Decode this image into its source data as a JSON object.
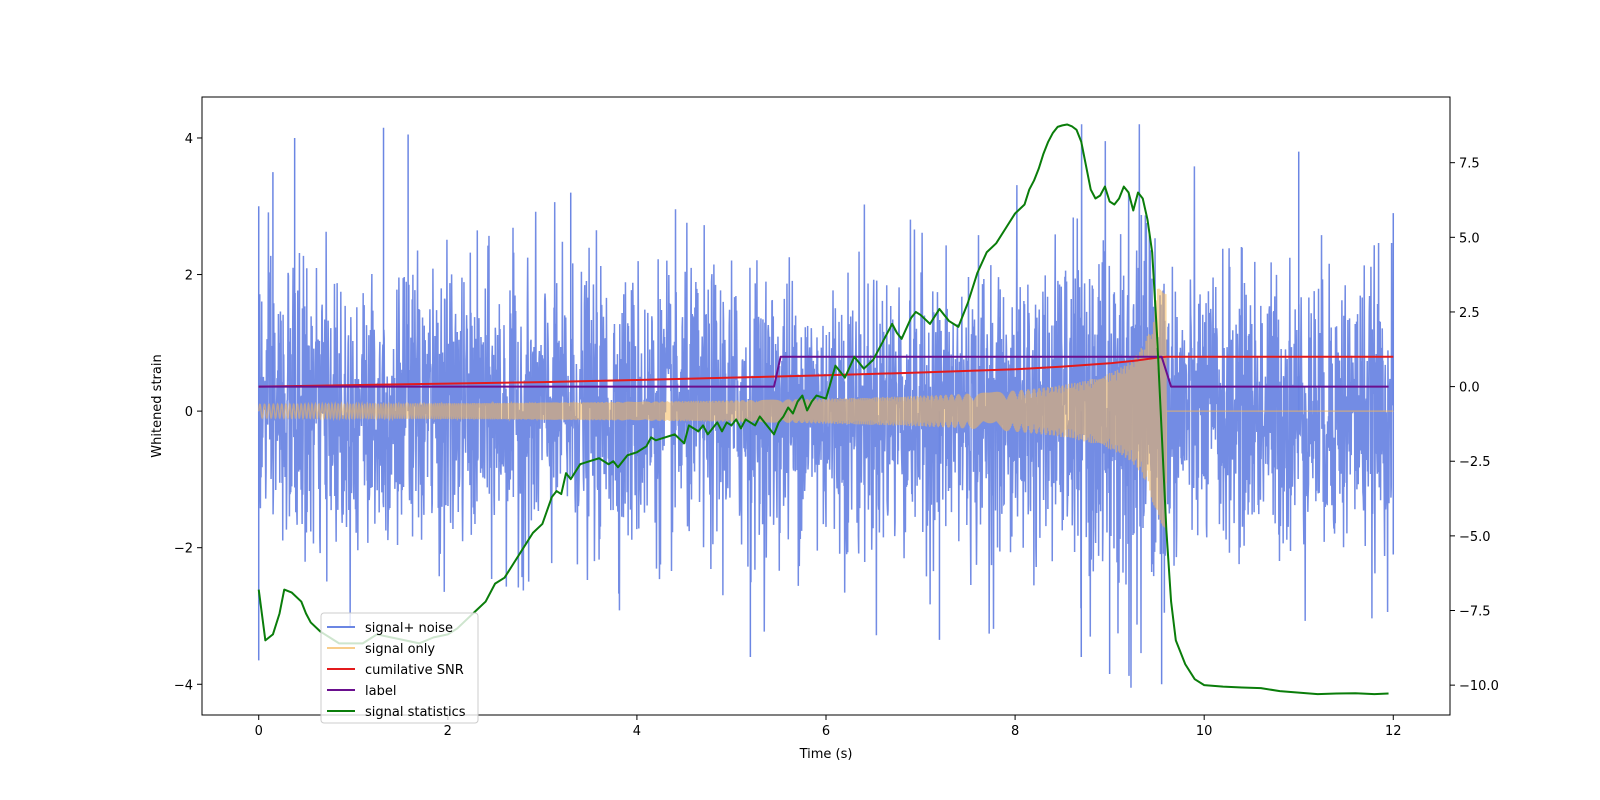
{
  "chart_data": {
    "type": "line",
    "title": "",
    "xlabel": "Time (s)",
    "ylabel": "Whitened strain",
    "y2label": "",
    "xlim": [
      -0.6,
      12.6
    ],
    "ylim": [
      -4.45,
      4.6
    ],
    "y2lim": [
      -11.0,
      9.7
    ],
    "xticks": [
      0,
      2,
      4,
      6,
      8,
      10,
      12
    ],
    "xtick_labels": [
      "0",
      "2",
      "4",
      "6",
      "8",
      "10",
      "12"
    ],
    "yticks": [
      -4,
      -2,
      0,
      2,
      4
    ],
    "ytick_labels": [
      "−4",
      "−2",
      "0",
      "2",
      "4"
    ],
    "y2ticks": [
      -10.0,
      -7.5,
      -5.0,
      -2.5,
      0.0,
      2.5,
      5.0,
      7.5
    ],
    "y2tick_labels": [
      "−10.0",
      "−7.5",
      "−5.0",
      "−2.5",
      "0.0",
      "2.5",
      "5.0",
      "7.5"
    ],
    "grid": false,
    "legend_position": "lower-left",
    "series": [
      {
        "name": "signal+ noise",
        "axis": "left",
        "color": "#6b86e3",
        "style": "noise",
        "t_start": 0,
        "t_end": 12,
        "sigma": 1.0,
        "envelope_peak": 1.8,
        "notable_spikes": [
          [
            0.0,
            3.0
          ],
          [
            0.0,
            -3.65
          ],
          [
            0.15,
            3.5
          ],
          [
            0.38,
            4.0
          ],
          [
            1.32,
            4.15
          ],
          [
            1.58,
            4.05
          ],
          [
            3.3,
            3.2
          ],
          [
            5.2,
            -3.6
          ],
          [
            7.2,
            -3.35
          ],
          [
            8.7,
            -3.6
          ],
          [
            9.0,
            -3.85
          ],
          [
            9.55,
            -4.0
          ],
          [
            11.0,
            3.8
          ],
          [
            12.0,
            2.9
          ],
          [
            12.0,
            -2.1
          ]
        ]
      },
      {
        "name": "signal only",
        "axis": "left",
        "color": "#f5b85a",
        "style": "chirp",
        "t_start": 0,
        "t_merge": 9.6,
        "t_end": 12,
        "amp_start": 0.1,
        "amp_peak": 1.8
      },
      {
        "name": "cumilative SNR",
        "axis": "right",
        "color": "#e31a1c",
        "x": [
          0,
          1,
          2,
          3,
          4,
          5,
          6,
          7,
          8,
          8.5,
          9.0,
          9.3,
          9.5,
          9.6,
          10,
          11,
          12
        ],
        "y": [
          0.0,
          0.05,
          0.1,
          0.15,
          0.22,
          0.3,
          0.38,
          0.47,
          0.58,
          0.67,
          0.78,
          0.88,
          0.97,
          1.0,
          1.0,
          1.0,
          1.0
        ]
      },
      {
        "name": "label",
        "axis": "right",
        "color": "#6a0f8e",
        "x": [
          0,
          5.45,
          5.52,
          9.55,
          9.65,
          11.95
        ],
        "y": [
          0.0,
          0.0,
          1.0,
          1.0,
          0.0,
          0.0
        ]
      },
      {
        "name": "signal statistics",
        "axis": "right",
        "color": "#0a7d0a",
        "x": [
          0.0,
          0.07,
          0.15,
          0.22,
          0.27,
          0.35,
          0.45,
          0.5,
          0.55,
          0.65,
          0.75,
          0.85,
          0.95,
          1.1,
          1.25,
          1.4,
          1.55,
          1.7,
          1.85,
          2.0,
          2.1,
          2.2,
          2.3,
          2.4,
          2.5,
          2.6,
          2.7,
          2.8,
          2.9,
          3.0,
          3.1,
          3.15,
          3.2,
          3.25,
          3.3,
          3.4,
          3.5,
          3.6,
          3.7,
          3.75,
          3.8,
          3.9,
          4.0,
          4.1,
          4.15,
          4.2,
          4.3,
          4.4,
          4.5,
          4.55,
          4.6,
          4.65,
          4.7,
          4.75,
          4.8,
          4.85,
          4.9,
          4.95,
          5.0,
          5.05,
          5.1,
          5.15,
          5.2,
          5.25,
          5.3,
          5.4,
          5.45,
          5.5,
          5.55,
          5.6,
          5.65,
          5.7,
          5.75,
          5.8,
          5.85,
          5.9,
          6.0,
          6.1,
          6.15,
          6.2,
          6.3,
          6.35,
          6.4,
          6.5,
          6.6,
          6.7,
          6.75,
          6.8,
          6.9,
          6.95,
          7.0,
          7.1,
          7.2,
          7.3,
          7.4,
          7.5,
          7.6,
          7.7,
          7.8,
          7.9,
          8.0,
          8.1,
          8.15,
          8.2,
          8.25,
          8.3,
          8.35,
          8.4,
          8.45,
          8.5,
          8.55,
          8.6,
          8.65,
          8.7,
          8.75,
          8.8,
          8.85,
          8.9,
          8.95,
          9.0,
          9.05,
          9.1,
          9.15,
          9.2,
          9.25,
          9.3,
          9.35,
          9.4,
          9.45,
          9.5,
          9.55,
          9.6,
          9.65,
          9.7,
          9.8,
          9.9,
          10.0,
          10.2,
          10.4,
          10.6,
          10.8,
          11.0,
          11.2,
          11.4,
          11.6,
          11.8,
          11.95
        ],
        "y": [
          -6.8,
          -8.5,
          -8.3,
          -7.6,
          -6.8,
          -6.9,
          -7.2,
          -7.6,
          -7.9,
          -8.2,
          -8.4,
          -8.6,
          -8.6,
          -8.6,
          -8.3,
          -8.4,
          -8.5,
          -8.6,
          -8.4,
          -8.3,
          -8.1,
          -7.8,
          -7.5,
          -7.2,
          -6.6,
          -6.4,
          -5.9,
          -5.4,
          -4.9,
          -4.6,
          -3.7,
          -3.5,
          -3.6,
          -2.9,
          -3.1,
          -2.6,
          -2.5,
          -2.4,
          -2.6,
          -2.5,
          -2.7,
          -2.3,
          -2.2,
          -2.0,
          -1.7,
          -1.8,
          -1.7,
          -1.6,
          -1.9,
          -1.3,
          -1.4,
          -1.5,
          -1.3,
          -1.6,
          -1.4,
          -1.2,
          -1.5,
          -1.2,
          -1.3,
          -1.1,
          -1.4,
          -1.1,
          -1.2,
          -1.3,
          -1.0,
          -1.4,
          -1.6,
          -1.2,
          -1.0,
          -0.7,
          -0.9,
          -0.5,
          -0.3,
          -0.8,
          -0.5,
          -0.3,
          -0.4,
          0.7,
          0.5,
          0.3,
          1.0,
          0.8,
          0.6,
          0.9,
          1.5,
          2.1,
          1.8,
          1.6,
          2.3,
          2.5,
          2.4,
          2.1,
          2.6,
          2.2,
          2.0,
          2.8,
          3.8,
          4.5,
          4.8,
          5.3,
          5.8,
          6.1,
          6.6,
          6.9,
          7.3,
          7.8,
          8.2,
          8.5,
          8.7,
          8.75,
          8.78,
          8.72,
          8.6,
          8.2,
          7.4,
          6.6,
          6.3,
          6.4,
          6.7,
          6.2,
          6.1,
          6.3,
          6.7,
          6.5,
          5.9,
          6.5,
          6.3,
          5.6,
          4.5,
          1.8,
          -1.5,
          -4.8,
          -7.2,
          -8.5,
          -9.3,
          -9.8,
          -10.0,
          -10.05,
          -10.08,
          -10.1,
          -10.2,
          -10.25,
          -10.3,
          -10.28,
          -10.27,
          -10.3,
          -10.28
        ]
      }
    ]
  }
}
